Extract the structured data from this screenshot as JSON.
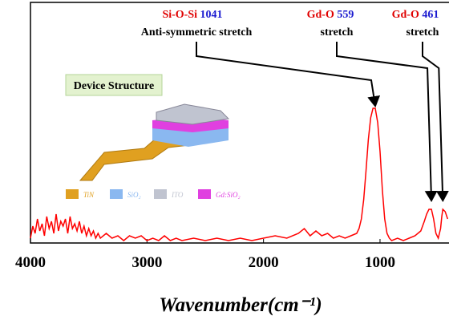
{
  "chart_data": {
    "type": "line",
    "xlabel": "Wavenumber(cm⁻¹)",
    "xlim": [
      4000,
      408
    ],
    "xticks": [
      4000,
      3000,
      2000,
      1000
    ],
    "ylim": [
      0,
      1
    ],
    "series": [
      {
        "color": "#ff0000",
        "x": [
          4000,
          3980,
          3960,
          3940,
          3920,
          3900,
          3880,
          3860,
          3840,
          3820,
          3800,
          3780,
          3760,
          3740,
          3720,
          3700,
          3680,
          3660,
          3640,
          3620,
          3600,
          3580,
          3560,
          3540,
          3520,
          3500,
          3480,
          3460,
          3440,
          3420,
          3400,
          3350,
          3300,
          3250,
          3200,
          3150,
          3100,
          3050,
          3000,
          2950,
          2900,
          2850,
          2800,
          2750,
          2700,
          2600,
          2500,
          2400,
          2300,
          2200,
          2100,
          2000,
          1900,
          1800,
          1700,
          1650,
          1600,
          1550,
          1500,
          1450,
          1400,
          1350,
          1300,
          1250,
          1200,
          1180,
          1160,
          1140,
          1120,
          1100,
          1080,
          1060,
          1041,
          1020,
          1000,
          980,
          960,
          940,
          920,
          900,
          850,
          800,
          750,
          700,
          650,
          620,
          600,
          580,
          559,
          540,
          520,
          500,
          480,
          470,
          461,
          440,
          420
        ],
        "values": [
          0.02,
          0.07,
          0.04,
          0.1,
          0.05,
          0.08,
          0.03,
          0.11,
          0.06,
          0.09,
          0.04,
          0.12,
          0.05,
          0.09,
          0.07,
          0.1,
          0.04,
          0.11,
          0.06,
          0.08,
          0.05,
          0.09,
          0.04,
          0.07,
          0.03,
          0.06,
          0.03,
          0.05,
          0.02,
          0.04,
          0.02,
          0.04,
          0.02,
          0.03,
          0.01,
          0.03,
          0.02,
          0.03,
          0.01,
          0.02,
          0.01,
          0.03,
          0.01,
          0.02,
          0.01,
          0.02,
          0.01,
          0.02,
          0.01,
          0.02,
          0.01,
          0.02,
          0.03,
          0.02,
          0.04,
          0.06,
          0.03,
          0.05,
          0.03,
          0.04,
          0.02,
          0.03,
          0.02,
          0.03,
          0.04,
          0.06,
          0.1,
          0.18,
          0.3,
          0.43,
          0.52,
          0.56,
          0.56,
          0.5,
          0.38,
          0.22,
          0.1,
          0.04,
          0.02,
          0.01,
          0.02,
          0.01,
          0.02,
          0.03,
          0.05,
          0.09,
          0.12,
          0.14,
          0.14,
          0.1,
          0.04,
          0.02,
          0.06,
          0.11,
          0.14,
          0.13,
          0.1
        ]
      }
    ],
    "annotations": [
      {
        "label": "Si-O-Si",
        "value": 1041,
        "note": "Anti-symmetric stretch"
      },
      {
        "label": "Gd-O",
        "value": 559,
        "note": "stretch"
      },
      {
        "label": "Gd-O",
        "value": 461,
        "note": "stretch"
      }
    ],
    "inset": {
      "title": "Device Structure",
      "legend": [
        {
          "name": "TiN",
          "color": "#e0a020"
        },
        {
          "name": "SiO₂",
          "color": "#8ab8f0"
        },
        {
          "name": "ITO",
          "color": "#c0c4d0"
        },
        {
          "name": "Gd:SiO₂",
          "color": "#e040e0"
        }
      ]
    }
  }
}
